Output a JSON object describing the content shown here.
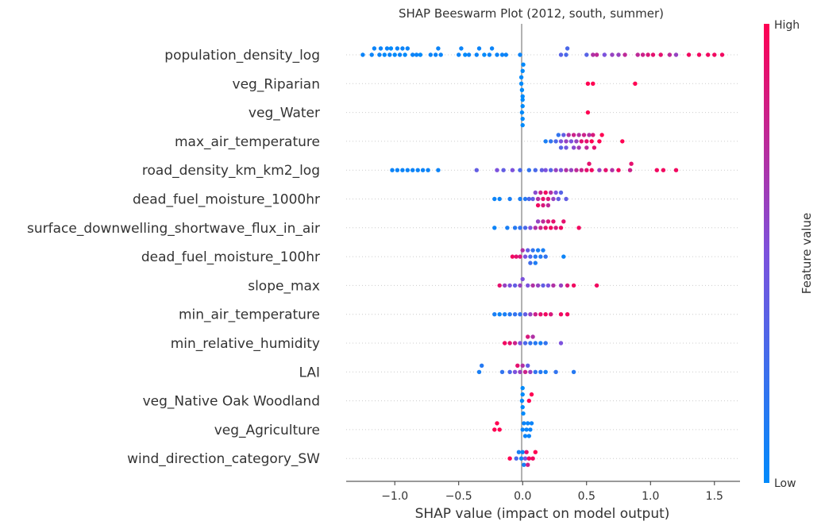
{
  "chart_data": {
    "type": "scatter",
    "subtype": "beeswarm",
    "title": "SHAP Beeswarm Plot (2012, south, summer)",
    "xlabel": "SHAP value (impact on model output)",
    "xlim": [
      -1.38,
      1.7
    ],
    "xticks": [
      -1.0,
      -0.5,
      0.0,
      0.5,
      1.0,
      1.5
    ],
    "xtick_labels": [
      "−1.0",
      "−0.5",
      "0.0",
      "0.5",
      "1.0",
      "1.5"
    ],
    "colorbar": {
      "label": "Feature value",
      "high_label": "High",
      "low_label": "Low",
      "low_color": "#008afb",
      "mid_color": "#7c52dd",
      "high_color": "#ff0052"
    },
    "features": [
      {
        "name": "population_density_log",
        "points": [
          [
            -1.25,
            0.05
          ],
          [
            -1.18,
            0.05
          ],
          [
            -1.16,
            0.05
          ],
          [
            -1.12,
            0.05
          ],
          [
            -1.11,
            0.05
          ],
          [
            -1.08,
            0.0
          ],
          [
            -1.06,
            0.05
          ],
          [
            -1.04,
            0.05
          ],
          [
            -1.03,
            0.0
          ],
          [
            -1.0,
            0.0
          ],
          [
            -0.98,
            0.05
          ],
          [
            -0.96,
            0.05
          ],
          [
            -0.94,
            0.05
          ],
          [
            -0.92,
            0.0
          ],
          [
            -0.9,
            0.05
          ],
          [
            -0.86,
            0.05
          ],
          [
            -0.83,
            0.05
          ],
          [
            -0.8,
            0.0
          ],
          [
            -0.72,
            0.05
          ],
          [
            -0.68,
            0.05
          ],
          [
            -0.66,
            0.05
          ],
          [
            -0.64,
            0.05
          ],
          [
            -0.5,
            0.05
          ],
          [
            -0.48,
            0.05
          ],
          [
            -0.45,
            0.0
          ],
          [
            -0.42,
            0.05
          ],
          [
            -0.36,
            0.05
          ],
          [
            -0.34,
            0.05
          ],
          [
            -0.3,
            0.0
          ],
          [
            -0.26,
            0.05
          ],
          [
            -0.24,
            0.05
          ],
          [
            -0.2,
            0.05
          ],
          [
            -0.16,
            0.05
          ],
          [
            -0.13,
            0.05
          ],
          [
            -0.02,
            0.05
          ],
          [
            0.3,
            0.35
          ],
          [
            0.34,
            0.3
          ],
          [
            0.35,
            0.3
          ],
          [
            0.5,
            0.35
          ],
          [
            0.55,
            0.7
          ],
          [
            0.58,
            0.75
          ],
          [
            0.64,
            0.5
          ],
          [
            0.7,
            0.6
          ],
          [
            0.75,
            0.6
          ],
          [
            0.8,
            0.75
          ],
          [
            0.9,
            0.75
          ],
          [
            0.94,
            0.8
          ],
          [
            0.98,
            0.85
          ],
          [
            1.02,
            0.9
          ],
          [
            1.08,
            0.9
          ],
          [
            1.15,
            0.75
          ],
          [
            1.2,
            0.6
          ],
          [
            1.3,
            0.95
          ],
          [
            1.38,
            0.95
          ],
          [
            1.45,
            0.95
          ],
          [
            1.5,
            0.95
          ],
          [
            1.56,
            0.95
          ]
        ]
      },
      {
        "name": "veg_Riparian",
        "points": [
          [
            -0.01,
            0.0
          ],
          [
            -0.005,
            0.0
          ],
          [
            0.0,
            0.0
          ],
          [
            0.005,
            0.0
          ],
          [
            -0.01,
            0.0
          ],
          [
            0.0,
            0.0
          ],
          [
            0.51,
            1.0
          ],
          [
            0.55,
            1.0
          ],
          [
            0.88,
            1.0
          ]
        ]
      },
      {
        "name": "veg_Water",
        "points": [
          [
            -0.005,
            0.0
          ],
          [
            0.0,
            0.0
          ],
          [
            0.0,
            0.0
          ],
          [
            0.0,
            0.0
          ],
          [
            0.0,
            0.0
          ],
          [
            0.51,
            1.0
          ]
        ]
      },
      {
        "name": "max_air_temperature",
        "points": [
          [
            0.18,
            0.1
          ],
          [
            0.22,
            0.2
          ],
          [
            0.26,
            0.3
          ],
          [
            0.28,
            0.2
          ],
          [
            0.3,
            0.5
          ],
          [
            0.32,
            0.4
          ],
          [
            0.34,
            0.6
          ],
          [
            0.36,
            0.7
          ],
          [
            0.38,
            0.5
          ],
          [
            0.4,
            0.8
          ],
          [
            0.42,
            0.6
          ],
          [
            0.44,
            0.7
          ],
          [
            0.46,
            0.9
          ],
          [
            0.48,
            0.8
          ],
          [
            0.5,
            0.9
          ],
          [
            0.52,
            0.7
          ],
          [
            0.54,
            1.0
          ],
          [
            0.56,
            0.9
          ],
          [
            0.6,
            1.0
          ],
          [
            0.62,
            1.0
          ],
          [
            0.3,
            0.35
          ],
          [
            0.34,
            0.45
          ],
          [
            0.4,
            0.55
          ],
          [
            0.44,
            0.65
          ],
          [
            0.5,
            0.75
          ],
          [
            0.55,
            0.85
          ],
          [
            0.78,
            1.0
          ]
        ]
      },
      {
        "name": "road_density_km_km2_log",
        "points": [
          [
            -1.02,
            0.05
          ],
          [
            -0.98,
            0.05
          ],
          [
            -0.94,
            0.05
          ],
          [
            -0.9,
            0.05
          ],
          [
            -0.86,
            0.05
          ],
          [
            -0.82,
            0.05
          ],
          [
            -0.78,
            0.05
          ],
          [
            -0.74,
            0.05
          ],
          [
            -0.66,
            0.05
          ],
          [
            -0.36,
            0.4
          ],
          [
            -0.2,
            0.5
          ],
          [
            -0.15,
            0.4
          ],
          [
            -0.08,
            0.5
          ],
          [
            -0.02,
            0.3
          ],
          [
            0.05,
            0.2
          ],
          [
            0.1,
            0.3
          ],
          [
            0.15,
            0.4
          ],
          [
            0.18,
            0.5
          ],
          [
            0.22,
            0.35
          ],
          [
            0.26,
            0.6
          ],
          [
            0.3,
            0.5
          ],
          [
            0.34,
            0.7
          ],
          [
            0.38,
            0.6
          ],
          [
            0.42,
            0.75
          ],
          [
            0.46,
            0.8
          ],
          [
            0.5,
            0.9
          ],
          [
            0.52,
            0.9
          ],
          [
            0.54,
            0.95
          ],
          [
            0.6,
            0.6
          ],
          [
            0.65,
            0.9
          ],
          [
            0.7,
            0.7
          ],
          [
            0.75,
            0.95
          ],
          [
            0.84,
            0.8
          ],
          [
            0.85,
            0.9
          ],
          [
            1.05,
            0.95
          ],
          [
            1.1,
            0.95
          ],
          [
            1.2,
            0.95
          ]
        ]
      },
      {
        "name": "dead_fuel_moisture_1000hr",
        "points": [
          [
            -0.22,
            0.05
          ],
          [
            -0.18,
            0.05
          ],
          [
            -0.1,
            0.1
          ],
          [
            -0.02,
            0.1
          ],
          [
            0.02,
            0.15
          ],
          [
            0.05,
            0.3
          ],
          [
            0.08,
            0.4
          ],
          [
            0.1,
            0.55
          ],
          [
            0.12,
            0.7
          ],
          [
            0.14,
            0.8
          ],
          [
            0.16,
            0.9
          ],
          [
            0.18,
            0.95
          ],
          [
            0.2,
            0.85
          ],
          [
            0.22,
            0.7
          ],
          [
            0.24,
            0.6
          ],
          [
            0.26,
            0.5
          ],
          [
            0.28,
            0.4
          ],
          [
            0.3,
            0.35
          ],
          [
            0.34,
            0.4
          ],
          [
            0.12,
            0.95
          ],
          [
            0.16,
            0.85
          ],
          [
            0.2,
            0.75
          ]
        ]
      },
      {
        "name": "surface_downwelling_shortwave_flux_in_air",
        "points": [
          [
            -0.22,
            0.05
          ],
          [
            -0.12,
            0.1
          ],
          [
            -0.06,
            0.15
          ],
          [
            -0.02,
            0.2
          ],
          [
            0.02,
            0.3
          ],
          [
            0.06,
            0.5
          ],
          [
            0.1,
            0.7
          ],
          [
            0.14,
            0.8
          ],
          [
            0.18,
            0.9
          ],
          [
            0.22,
            0.95
          ],
          [
            0.26,
            0.85
          ],
          [
            0.3,
            0.95
          ],
          [
            0.32,
            0.9
          ],
          [
            0.12,
            0.6
          ],
          [
            0.16,
            0.75
          ],
          [
            0.2,
            0.85
          ],
          [
            0.24,
            0.9
          ],
          [
            0.44,
            0.95
          ]
        ]
      },
      {
        "name": "dead_fuel_moisture_100hr",
        "points": [
          [
            -0.08,
            0.95
          ],
          [
            -0.05,
            0.9
          ],
          [
            -0.02,
            0.85
          ],
          [
            0.0,
            0.7
          ],
          [
            0.02,
            0.5
          ],
          [
            0.04,
            0.4
          ],
          [
            0.06,
            0.3
          ],
          [
            0.08,
            0.2
          ],
          [
            0.1,
            0.15
          ],
          [
            0.12,
            0.1
          ],
          [
            0.14,
            0.15
          ],
          [
            0.16,
            0.1
          ],
          [
            0.18,
            0.2
          ],
          [
            0.32,
            0.05
          ],
          [
            0.06,
            0.25
          ],
          [
            0.1,
            0.12
          ]
        ]
      },
      {
        "name": "slope_max",
        "points": [
          [
            -0.18,
            0.9
          ],
          [
            -0.14,
            0.6
          ],
          [
            -0.1,
            0.5
          ],
          [
            -0.06,
            0.4
          ],
          [
            -0.02,
            0.6
          ],
          [
            0.0,
            0.5
          ],
          [
            0.04,
            0.5
          ],
          [
            0.08,
            0.7
          ],
          [
            0.12,
            0.6
          ],
          [
            0.16,
            0.4
          ],
          [
            0.2,
            0.5
          ],
          [
            0.24,
            0.7
          ],
          [
            0.3,
            0.6
          ],
          [
            0.35,
            0.85
          ],
          [
            0.4,
            0.95
          ],
          [
            0.58,
            0.95
          ]
        ]
      },
      {
        "name": "min_air_temperature",
        "points": [
          [
            -0.22,
            0.1
          ],
          [
            -0.18,
            0.05
          ],
          [
            -0.14,
            0.1
          ],
          [
            -0.1,
            0.15
          ],
          [
            -0.06,
            0.2
          ],
          [
            -0.02,
            0.2
          ],
          [
            0.02,
            0.4
          ],
          [
            0.06,
            0.6
          ],
          [
            0.1,
            0.8
          ],
          [
            0.14,
            0.9
          ],
          [
            0.18,
            0.95
          ],
          [
            0.22,
            0.85
          ],
          [
            0.3,
            0.95
          ],
          [
            0.35,
            0.95
          ]
        ]
      },
      {
        "name": "min_relative_humidity",
        "points": [
          [
            -0.14,
            0.95
          ],
          [
            -0.1,
            0.9
          ],
          [
            -0.06,
            0.8
          ],
          [
            -0.02,
            0.5
          ],
          [
            0.02,
            0.3
          ],
          [
            0.06,
            0.2
          ],
          [
            0.1,
            0.15
          ],
          [
            0.14,
            0.1
          ],
          [
            0.18,
            0.2
          ],
          [
            0.3,
            0.5
          ],
          [
            0.04,
            0.85
          ],
          [
            0.08,
            0.7
          ]
        ]
      },
      {
        "name": "LAI",
        "points": [
          [
            -0.34,
            0.1
          ],
          [
            -0.32,
            0.15
          ],
          [
            -0.16,
            0.2
          ],
          [
            -0.1,
            0.3
          ],
          [
            -0.06,
            0.5
          ],
          [
            -0.02,
            0.6
          ],
          [
            0.0,
            0.7
          ],
          [
            0.02,
            0.8
          ],
          [
            0.06,
            0.6
          ],
          [
            0.1,
            0.2
          ],
          [
            0.14,
            0.15
          ],
          [
            0.18,
            0.1
          ],
          [
            0.26,
            0.2
          ],
          [
            0.4,
            0.15
          ],
          [
            -0.04,
            0.9
          ],
          [
            0.04,
            0.4
          ]
        ]
      },
      {
        "name": "veg_Native Oak Woodland",
        "points": [
          [
            -0.005,
            0.0
          ],
          [
            0.0,
            0.0
          ],
          [
            0.0,
            0.0
          ],
          [
            0.0,
            0.0
          ],
          [
            0.005,
            0.0
          ],
          [
            0.05,
            1.0
          ],
          [
            0.07,
            1.0
          ]
        ]
      },
      {
        "name": "veg_Agriculture",
        "points": [
          [
            -0.22,
            1.0
          ],
          [
            -0.2,
            1.0
          ],
          [
            -0.18,
            1.0
          ],
          [
            0.02,
            0.05
          ],
          [
            0.03,
            0.05
          ],
          [
            0.04,
            0.05
          ],
          [
            0.05,
            0.05
          ],
          [
            0.06,
            0.05
          ],
          [
            0.07,
            0.05
          ],
          [
            0.0,
            0.05
          ],
          [
            0.01,
            0.05
          ]
        ]
      },
      {
        "name": "wind_direction_category_SW",
        "points": [
          [
            -0.1,
            1.0
          ],
          [
            -0.05,
            0.3
          ],
          [
            -0.03,
            0.1
          ],
          [
            -0.01,
            0.05
          ],
          [
            0.0,
            0.05
          ],
          [
            0.01,
            0.1
          ],
          [
            0.03,
            0.9
          ],
          [
            0.05,
            0.95
          ],
          [
            0.08,
            0.95
          ],
          [
            0.1,
            1.0
          ],
          [
            0.02,
            0.5
          ],
          [
            0.04,
            0.8
          ]
        ]
      }
    ]
  }
}
